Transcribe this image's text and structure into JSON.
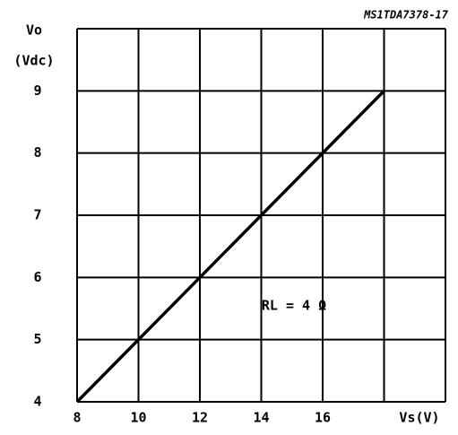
{
  "chart_data": {
    "type": "line",
    "code": "MS1TDA7378-17",
    "ylabel": [
      "Vo",
      "(Vdc)"
    ],
    "xlabel": "Vs(V)",
    "annotation": "RL = 4 Ω",
    "x": [
      8,
      18
    ],
    "series": [
      {
        "color": "#000000",
        "values": [
          4,
          9
        ]
      }
    ],
    "xlim": [
      8,
      20
    ],
    "ylim": [
      4,
      10
    ],
    "xticks": [
      8,
      10,
      12,
      14,
      16
    ],
    "yticks": [
      4,
      5,
      6,
      7,
      8,
      9
    ],
    "xgrid": [
      8,
      10,
      12,
      14,
      16,
      18,
      20
    ],
    "ygrid": [
      4,
      5,
      6,
      7,
      8,
      9,
      10
    ],
    "grid": true
  }
}
